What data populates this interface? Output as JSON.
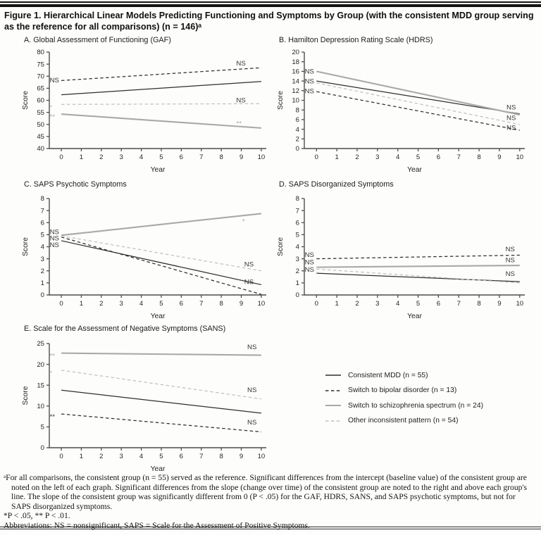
{
  "figure": {
    "title": "Figure 1. Hierarchical Linear Models Predicting Functioning and Symptoms by Group (with the consistent MDD group serving as the reference for all comparisons) (n = 146)ᵃ"
  },
  "colors": {
    "black": "#2e2e30",
    "gray": "#a7a9ac",
    "gray_light": "#bfc1c3",
    "axis": "#4d4d4f"
  },
  "legend": {
    "items": [
      {
        "label": "Consistent MDD (n = 55)",
        "style": "solid",
        "color": "black"
      },
      {
        "label": "Switch to bipolar disorder (n = 13)",
        "style": "dashed",
        "color": "black"
      },
      {
        "label": "Switch to schizophrenia spectrum (n = 24)",
        "style": "solid",
        "color": "gray"
      },
      {
        "label": "Other inconsistent pattern (n = 54)",
        "style": "dashed",
        "color": "gray_light"
      }
    ]
  },
  "footnotes": {
    "note_a": "ᵃFor all comparisons, the consistent group (n = 55) served as the reference. Significant differences from the intercept (baseline value) of the consistent group are noted on the left of each graph. Significant differences from the slope (change over time) of the consistent group are noted to the right and above each group's line. The slope of the consistent group was significantly different from 0 (P < .05) for the GAF, HDRS, SANS, and SAPS psychotic symptoms, but not for SAPS disorganized symptoms.",
    "significance": "*P < .05, ** P < .01.",
    "abbreviations": "Abbreviations: NS = nonsignificant, SAPS = Scale for the Assessment of Positive Symptoms."
  },
  "chart_data": [
    {
      "id": "gaf",
      "type": "line",
      "title": "A. Global Assessment of Functioning (GAF)",
      "xlabel": "Year",
      "ylabel": "Score",
      "xlim": [
        0,
        10
      ],
      "xtick_step": 1,
      "ylim": [
        40,
        80
      ],
      "ytick_step": 5,
      "series": [
        {
          "name": "Consistent MDD (n = 55)",
          "style": "solid",
          "color": "black",
          "x": [
            0,
            10
          ],
          "values": [
            62.3,
            67.8
          ]
        },
        {
          "name": "Switch to bipolar disorder (n = 13)",
          "style": "dashed",
          "color": "black",
          "x": [
            0,
            10
          ],
          "values": [
            68.2,
            73.5
          ]
        },
        {
          "name": "Switch to schizophrenia spectrum (n = 24)",
          "style": "solid",
          "color": "gray",
          "x": [
            0,
            10
          ],
          "values": [
            54.3,
            48.5
          ]
        },
        {
          "name": "Other inconsistent pattern (n = 54)",
          "style": "dashed",
          "color": "gray_light",
          "x": [
            0,
            10
          ],
          "values": [
            58.3,
            58.6
          ]
        }
      ],
      "annotations": [
        {
          "text": "NS",
          "x": -0.58,
          "y": 68.4,
          "color": "black"
        },
        {
          "text": "*",
          "x": -0.58,
          "y": 58.1,
          "color": "gray_light"
        },
        {
          "text": "**",
          "x": -0.58,
          "y": 54.2,
          "color": "gray"
        },
        {
          "text": "NS",
          "x": 8.75,
          "y": 75.4,
          "color": "black"
        },
        {
          "text": "NS",
          "x": 8.75,
          "y": 60.1,
          "color": "black"
        },
        {
          "text": "**",
          "x": 8.75,
          "y": 51.4,
          "color": "gray"
        }
      ]
    },
    {
      "id": "hdrs",
      "type": "line",
      "title": "B. Hamilton Depression Rating Scale (HDRS)",
      "xlabel": "Year",
      "ylabel": "Score",
      "xlim": [
        0,
        10
      ],
      "xtick_step": 1,
      "ylim": [
        0,
        20
      ],
      "ytick_step": 2,
      "series": [
        {
          "name": "Consistent MDD (n = 55)",
          "style": "solid",
          "color": "black",
          "x": [
            0,
            10
          ],
          "values": [
            14.0,
            7.2
          ]
        },
        {
          "name": "Switch to bipolar disorder (n = 13)",
          "style": "dashed",
          "color": "black",
          "x": [
            0,
            10
          ],
          "values": [
            11.8,
            3.8
          ]
        },
        {
          "name": "Switch to schizophrenia spectrum (n = 24)",
          "style": "solid",
          "color": "gray",
          "x": [
            0,
            10
          ],
          "values": [
            16.0,
            7.0
          ]
        },
        {
          "name": "Other inconsistent pattern (n = 54)",
          "style": "dashed",
          "color": "gray_light",
          "x": [
            0,
            10
          ],
          "values": [
            13.6,
            5.0
          ]
        }
      ],
      "annotations": [
        {
          "text": "NS",
          "x": -0.58,
          "y": 16.0,
          "color": "black"
        },
        {
          "text": "NS",
          "x": -0.58,
          "y": 14.0,
          "color": "black"
        },
        {
          "text": "NS",
          "x": -0.58,
          "y": 11.9,
          "color": "black"
        },
        {
          "text": "NS",
          "x": 9.35,
          "y": 8.6,
          "color": "black"
        },
        {
          "text": "NS",
          "x": 9.35,
          "y": 6.4,
          "color": "black"
        },
        {
          "text": "NS",
          "x": 9.35,
          "y": 4.3,
          "color": "black"
        }
      ]
    },
    {
      "id": "saps-psychotic",
      "type": "line",
      "title": "C. SAPS Psychotic Symptoms",
      "xlabel": "Year",
      "ylabel": "Score",
      "xlim": [
        0,
        10
      ],
      "xtick_step": 1,
      "ylim": [
        0,
        8
      ],
      "ytick_step": 1,
      "series": [
        {
          "name": "Consistent MDD (n = 55)",
          "style": "solid",
          "color": "black",
          "x": [
            0,
            10
          ],
          "values": [
            4.5,
            0.85
          ]
        },
        {
          "name": "Switch to bipolar disorder (n = 13)",
          "style": "dashed",
          "color": "black",
          "x": [
            0,
            10
          ],
          "values": [
            4.8,
            0.05
          ]
        },
        {
          "name": "Switch to schizophrenia spectrum (n = 24)",
          "style": "solid",
          "color": "gray",
          "x": [
            0,
            10
          ],
          "values": [
            4.95,
            6.75
          ]
        },
        {
          "name": "Other inconsistent pattern (n = 54)",
          "style": "dashed",
          "color": "gray_light",
          "x": [
            0,
            10
          ],
          "values": [
            4.9,
            2.0
          ]
        }
      ],
      "annotations": [
        {
          "text": "NS",
          "x": -0.58,
          "y": 5.25,
          "color": "black"
        },
        {
          "text": "NS",
          "x": -0.58,
          "y": 4.72,
          "color": "black"
        },
        {
          "text": "NS",
          "x": -0.58,
          "y": 4.15,
          "color": "black"
        },
        {
          "text": "*",
          "x": 9.05,
          "y": 6.32,
          "color": "gray"
        },
        {
          "text": "NS",
          "x": 9.15,
          "y": 2.55,
          "color": "black"
        },
        {
          "text": "NS",
          "x": 9.15,
          "y": 1.1,
          "color": "black"
        }
      ]
    },
    {
      "id": "saps-disorganized",
      "type": "line",
      "title": "D. SAPS Disorganized Symptoms",
      "xlabel": "Year",
      "ylabel": "Score",
      "xlim": [
        0,
        10
      ],
      "xtick_step": 1,
      "ylim": [
        0,
        8
      ],
      "ytick_step": 1,
      "series": [
        {
          "name": "Consistent MDD (n = 55)",
          "style": "solid",
          "color": "black",
          "x": [
            0,
            10
          ],
          "values": [
            1.8,
            1.1
          ]
        },
        {
          "name": "Switch to bipolar disorder (n = 13)",
          "style": "dashed",
          "color": "black",
          "x": [
            0,
            10
          ],
          "values": [
            3.0,
            3.3
          ]
        },
        {
          "name": "Switch to schizophrenia spectrum (n = 24)",
          "style": "solid",
          "color": "gray",
          "x": [
            0,
            10
          ],
          "values": [
            2.3,
            2.45
          ]
        },
        {
          "name": "Other inconsistent pattern (n = 54)",
          "style": "dashed",
          "color": "gray_light",
          "x": [
            0,
            10
          ],
          "values": [
            2.15,
            1.0
          ]
        }
      ],
      "annotations": [
        {
          "text": "NS",
          "x": -0.58,
          "y": 3.35,
          "color": "black"
        },
        {
          "text": "NS",
          "x": -0.58,
          "y": 2.72,
          "color": "black"
        },
        {
          "text": "NS",
          "x": -0.58,
          "y": 2.1,
          "color": "black"
        },
        {
          "text": "NS",
          "x": 9.3,
          "y": 3.8,
          "color": "black"
        },
        {
          "text": "NS",
          "x": 9.3,
          "y": 2.9,
          "color": "black"
        },
        {
          "text": "NS",
          "x": 9.3,
          "y": 1.75,
          "color": "black"
        }
      ]
    },
    {
      "id": "sans",
      "type": "line",
      "title": "E. Scale for the Assessment of Negative Symptoms (SANS)",
      "xlabel": "Year",
      "ylabel": "Score",
      "xlim": [
        0,
        10
      ],
      "xtick_step": 1,
      "ylim": [
        0,
        25
      ],
      "ytick_step": 5,
      "series": [
        {
          "name": "Consistent MDD (n = 55)",
          "style": "solid",
          "color": "black",
          "x": [
            0,
            10
          ],
          "values": [
            13.8,
            8.3
          ]
        },
        {
          "name": "Switch to bipolar disorder (n = 13)",
          "style": "dashed",
          "color": "black",
          "x": [
            0,
            10
          ],
          "values": [
            8.1,
            3.8
          ]
        },
        {
          "name": "Switch to schizophrenia spectrum (n = 24)",
          "style": "solid",
          "color": "gray",
          "x": [
            0,
            10
          ],
          "values": [
            22.7,
            22.2
          ]
        },
        {
          "name": "Other inconsistent pattern (n = 54)",
          "style": "dashed",
          "color": "gray_light",
          "x": [
            0,
            10
          ],
          "values": [
            18.6,
            11.7
          ]
        }
      ],
      "annotations": [
        {
          "text": "**",
          "x": -0.58,
          "y": 22.6,
          "color": "gray"
        },
        {
          "text": "*",
          "x": -0.58,
          "y": 18.5,
          "color": "gray_light"
        },
        {
          "text": "**",
          "x": -0.58,
          "y": 8.0,
          "color": "black"
        },
        {
          "text": "NS",
          "x": 9.3,
          "y": 24.2,
          "color": "black"
        },
        {
          "text": "NS",
          "x": 9.3,
          "y": 13.9,
          "color": "black"
        },
        {
          "text": "NS",
          "x": 9.3,
          "y": 6.1,
          "color": "black"
        }
      ]
    }
  ]
}
